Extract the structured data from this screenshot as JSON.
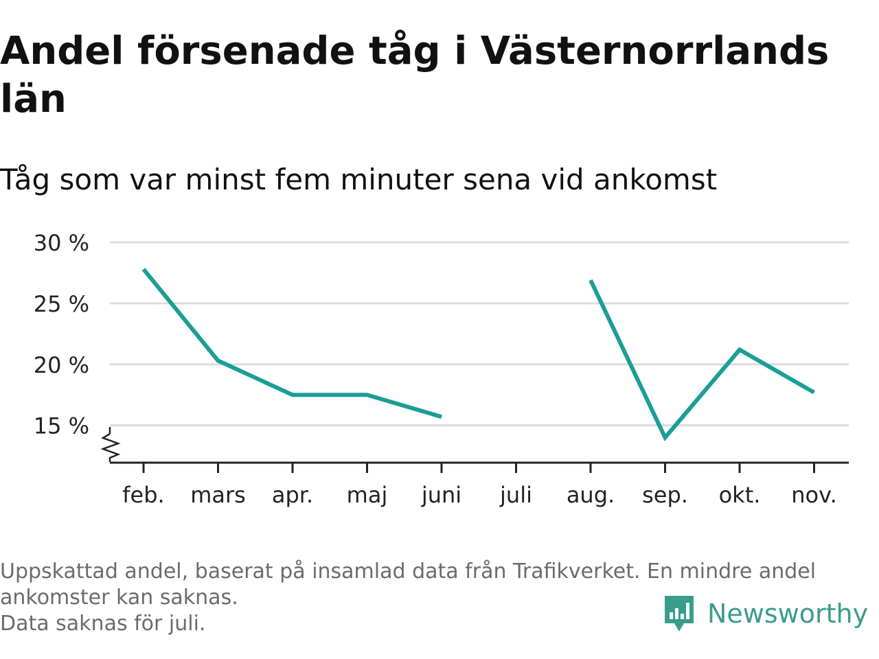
{
  "title": "Andel försenade tåg i Västernorrlands län",
  "subtitle": "Tåg som var minst fem minuter sena vid ankomst",
  "footnote": {
    "line1": "Uppskattad andel, baserat på insamlad data från Trafikverket. En mindre andel",
    "line2": "ankomster kan saknas.",
    "line3": "Data saknas för juli."
  },
  "brand": {
    "name": "Newsworthy",
    "color": "#3a9c8c"
  },
  "chart_data": {
    "type": "line",
    "categories": [
      "feb.",
      "mars",
      "apr.",
      "maj",
      "juni",
      "juli",
      "aug.",
      "sep.",
      "okt.",
      "nov."
    ],
    "series": [
      {
        "values": [
          27.8,
          20.3,
          17.5,
          17.5,
          15.7,
          null,
          26.9,
          14.0,
          21.2,
          17.7
        ],
        "color": "#1a9e95"
      }
    ],
    "yticks": [
      15,
      20,
      25,
      30
    ],
    "ytick_labels": [
      "15 %",
      "20 %",
      "25 %",
      "30 %"
    ],
    "ylim": [
      12,
      30
    ],
    "y_axis_break": true,
    "grid": true,
    "legend": "none"
  }
}
